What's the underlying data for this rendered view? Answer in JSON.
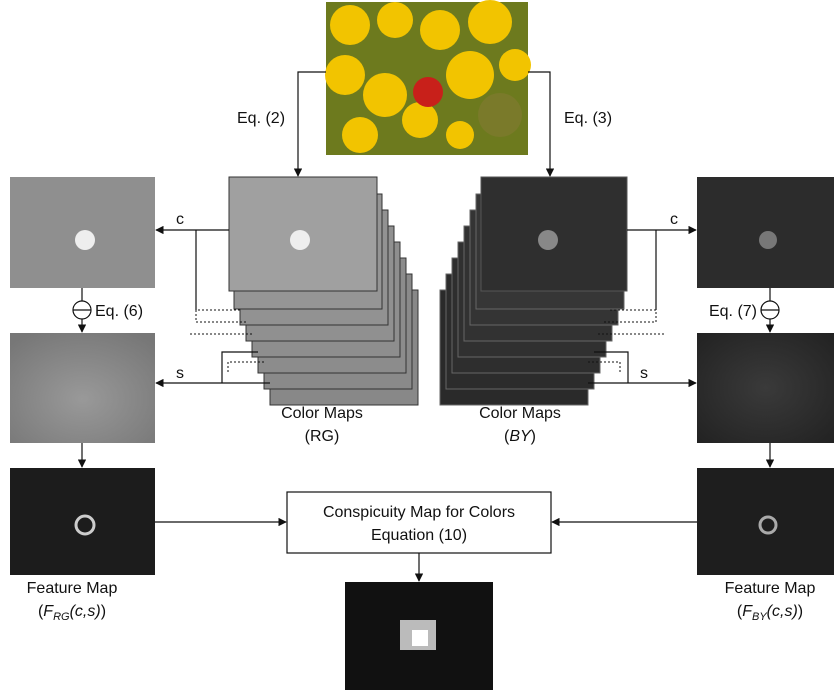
{
  "equations": {
    "rg": "Eq. (2)",
    "by": "Eq. (3)",
    "left_diff": "Eq. (6)",
    "right_diff": "Eq. (7)"
  },
  "scales": {
    "center_left": "c",
    "center_right": "c",
    "surround_left": "s",
    "surround_right": "s"
  },
  "color_maps": [
    {
      "title": "Color Maps",
      "label": "(RG)"
    },
    {
      "title": "Color Maps",
      "label_open": "(",
      "label": "BY",
      "label_close": ")"
    }
  ],
  "conspicuity": {
    "line1": "Conspicuity Map for Colors",
    "line2": "Equation (10)"
  },
  "feature_maps": [
    {
      "title": "Feature Map",
      "open": "(",
      "f": "F",
      "sub": "RG",
      "args": "(c,s)",
      "close": ")"
    },
    {
      "title": "Feature Map",
      "open": "(",
      "f": "F",
      "sub": "BY",
      "args": "(c,s)",
      "close": ")"
    }
  ]
}
